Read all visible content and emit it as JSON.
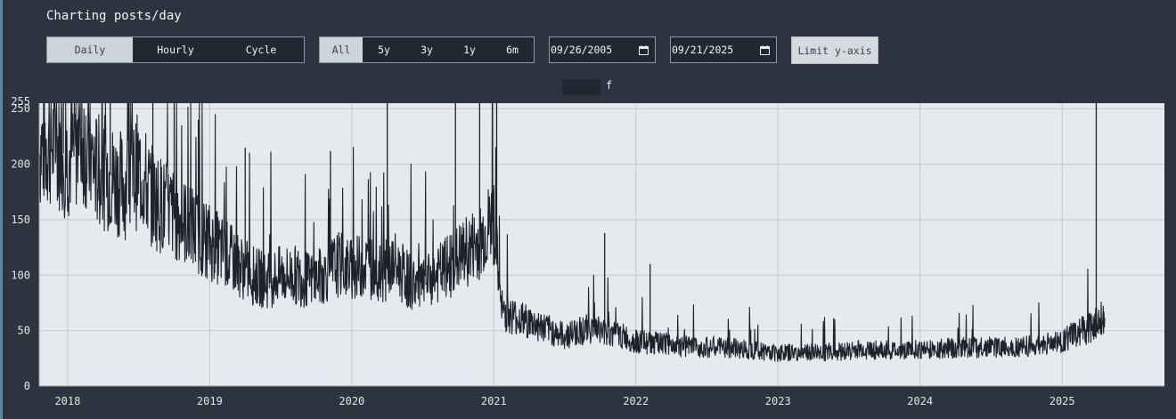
{
  "header": {
    "title": "Charting posts/day"
  },
  "mode_tabs": [
    {
      "label": "Daily",
      "active": true
    },
    {
      "label": "Hourly",
      "active": false
    },
    {
      "label": "Cycle",
      "active": false
    }
  ],
  "range_tabs": [
    {
      "label": "All",
      "active": true
    },
    {
      "label": "5y",
      "active": false
    },
    {
      "label": "3y",
      "active": false
    },
    {
      "label": "1y",
      "active": false
    },
    {
      "label": "6m",
      "active": false
    }
  ],
  "date_range": {
    "start": "09/26/2005",
    "end": "09/21/2025"
  },
  "limit_button": {
    "label": "Limit y-axis"
  },
  "colors": {
    "background": "#2d3440",
    "plot": "#e6e9ed",
    "line": "#1f2229",
    "active_tab": "#ced3da"
  },
  "chart_data": {
    "type": "line",
    "title": "",
    "xlabel": "",
    "ylabel": "",
    "legend": {
      "label": "f",
      "placement": "top-center"
    },
    "x_ticks": [
      "2018",
      "2019",
      "2020",
      "2021",
      "2022",
      "2023",
      "2024",
      "2025"
    ],
    "y_ticks": [
      0,
      50,
      100,
      150,
      200,
      250
    ],
    "ylim": [
      0,
      255
    ],
    "ylim_label": "255",
    "xlim": [
      2017.8,
      2025.72
    ],
    "grid": true,
    "series": [
      {
        "name": "f",
        "x": [
          2017.8,
          2017.9,
          2018.0,
          2018.1,
          2018.2,
          2018.3,
          2018.4,
          2018.5,
          2018.6,
          2018.7,
          2018.8,
          2018.9,
          2019.0,
          2019.1,
          2019.2,
          2019.3,
          2019.4,
          2019.5,
          2019.6,
          2019.7,
          2019.8,
          2019.9,
          2020.0,
          2020.1,
          2020.2,
          2020.3,
          2020.4,
          2020.5,
          2020.6,
          2020.7,
          2020.8,
          2020.9,
          2021.0,
          2021.05,
          2021.1,
          2021.2,
          2021.3,
          2021.4,
          2021.5,
          2021.6,
          2021.7,
          2021.8,
          2021.9,
          2022.0,
          2022.2,
          2022.4,
          2022.6,
          2022.8,
          2023.0,
          2023.2,
          2023.4,
          2023.6,
          2023.8,
          2024.0,
          2024.2,
          2024.4,
          2024.6,
          2024.8,
          2025.0,
          2025.1,
          2025.2,
          2025.25,
          2025.3
        ],
        "values": [
          215,
          220,
          205,
          225,
          195,
          190,
          180,
          195,
          170,
          160,
          150,
          140,
          130,
          120,
          110,
          100,
          95,
          100,
          100,
          95,
          100,
          110,
          105,
          110,
          100,
          110,
          95,
          90,
          100,
          110,
          120,
          130,
          150,
          70,
          65,
          60,
          55,
          50,
          45,
          50,
          52,
          48,
          45,
          40,
          38,
          35,
          35,
          33,
          30,
          30,
          31,
          33,
          32,
          33,
          34,
          35,
          35,
          36,
          40,
          48,
          52,
          60,
          65
        ],
        "spikes": [
          {
            "x": 2017.87,
            "y": 255
          },
          {
            "x": 2017.97,
            "y": 255
          },
          {
            "x": 2018.1,
            "y": 255
          },
          {
            "x": 2018.3,
            "y": 255
          },
          {
            "x": 2018.6,
            "y": 255
          },
          {
            "x": 2018.75,
            "y": 255
          },
          {
            "x": 2018.92,
            "y": 240
          },
          {
            "x": 2019.25,
            "y": 215
          },
          {
            "x": 2019.85,
            "y": 212
          },
          {
            "x": 2020.25,
            "y": 255
          },
          {
            "x": 2020.73,
            "y": 255
          },
          {
            "x": 2020.9,
            "y": 255
          },
          {
            "x": 2020.99,
            "y": 255
          },
          {
            "x": 2021.02,
            "y": 255
          },
          {
            "x": 2021.78,
            "y": 138
          },
          {
            "x": 2022.1,
            "y": 110
          },
          {
            "x": 2025.24,
            "y": 255
          }
        ]
      }
    ]
  }
}
